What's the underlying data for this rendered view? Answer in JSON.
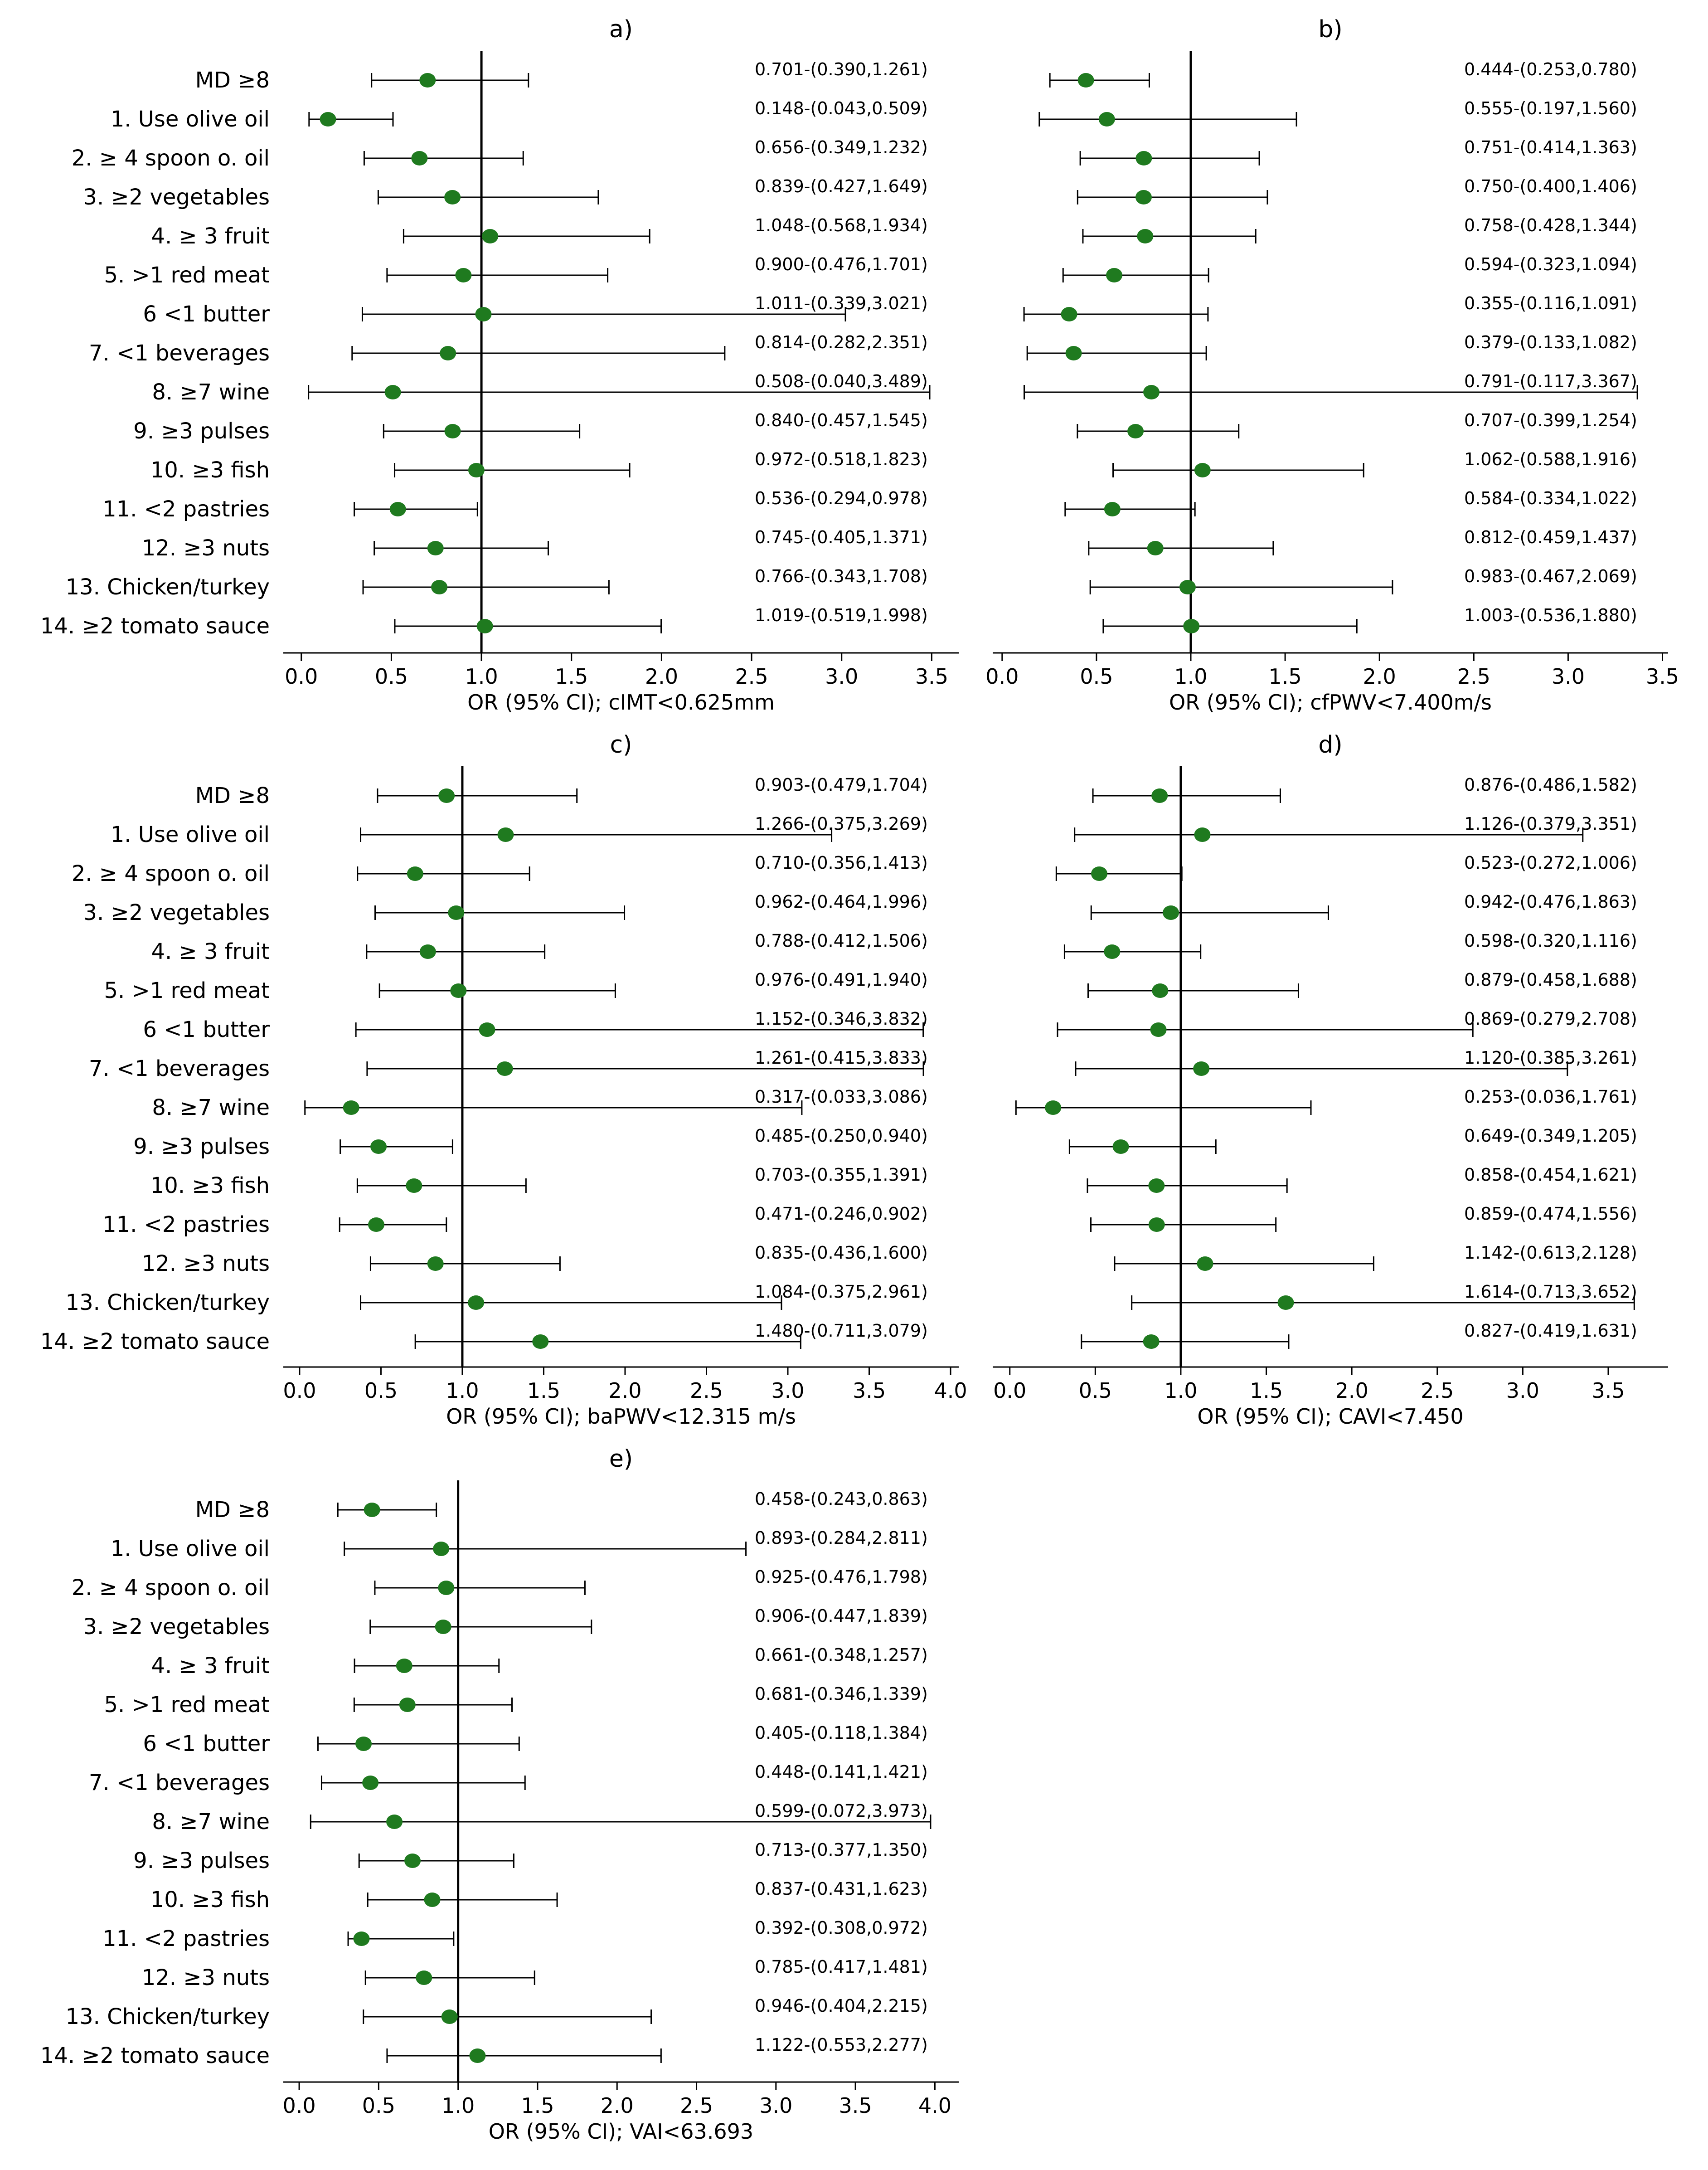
{
  "colors": {
    "point": "#1f7a1f",
    "line": "#000000",
    "background": "#ffffff"
  },
  "chart_data": [
    {
      "type": "forest",
      "title": "a)",
      "xlabel": "OR (95% CI); cIMT<0.625mm",
      "xlim": [
        -0.1,
        3.65
      ],
      "xticks": [
        "0.0",
        "0.5",
        "1.0",
        "1.5",
        "2.0",
        "2.5",
        "3.0",
        "3.5"
      ],
      "reference_line": 1.0,
      "rows": [
        {
          "label": "MD ≥8",
          "or": 0.701,
          "low": 0.39,
          "high": 1.261,
          "text": "0.701-(0.390,1.261)"
        },
        {
          "label": "1. Use olive oil",
          "or": 0.148,
          "low": 0.043,
          "high": 0.509,
          "text": "0.148-(0.043,0.509)"
        },
        {
          "label": "2. ≥ 4 spoon o. oil",
          "or": 0.656,
          "low": 0.349,
          "high": 1.232,
          "text": "0.656-(0.349,1.232)"
        },
        {
          "label": "3. ≥2 vegetables",
          "or": 0.839,
          "low": 0.427,
          "high": 1.649,
          "text": "0.839-(0.427,1.649)"
        },
        {
          "label": "4. ≥ 3 fruit",
          "or": 1.048,
          "low": 0.568,
          "high": 1.934,
          "text": "1.048-(0.568,1.934)"
        },
        {
          "label": "5. >1 red meat",
          "or": 0.9,
          "low": 0.476,
          "high": 1.701,
          "text": "0.900-(0.476,1.701)"
        },
        {
          "label": "6 <1 butter",
          "or": 1.011,
          "low": 0.339,
          "high": 3.021,
          "text": "1.011-(0.339,3.021)"
        },
        {
          "label": "7. <1 beverages",
          "or": 0.814,
          "low": 0.282,
          "high": 2.351,
          "text": "0.814-(0.282,2.351)"
        },
        {
          "label": "8. ≥7 wine",
          "or": 0.508,
          "low": 0.04,
          "high": 3.489,
          "text": "0.508-(0.040,3.489)"
        },
        {
          "label": "9. ≥3 pulses",
          "or": 0.84,
          "low": 0.457,
          "high": 1.545,
          "text": "0.840-(0.457,1.545)"
        },
        {
          "label": "10. ≥3 fish",
          "or": 0.972,
          "low": 0.518,
          "high": 1.823,
          "text": "0.972-(0.518,1.823)"
        },
        {
          "label": "11. <2 pastries",
          "or": 0.536,
          "low": 0.294,
          "high": 0.978,
          "text": "0.536-(0.294,0.978)"
        },
        {
          "label": "12. ≥3 nuts",
          "or": 0.745,
          "low": 0.405,
          "high": 1.371,
          "text": "0.745-(0.405,1.371)"
        },
        {
          "label": "13. Chicken/turkey",
          "or": 0.766,
          "low": 0.343,
          "high": 1.708,
          "text": "0.766-(0.343,1.708)"
        },
        {
          "label": "14. ≥2 tomato sauce",
          "or": 1.019,
          "low": 0.519,
          "high": 1.998,
          "text": "1.019-(0.519,1.998)"
        }
      ]
    },
    {
      "type": "forest",
      "title": "b)",
      "xlabel": "OR (95% CI); cfPWV<7.400m/s",
      "xlim": [
        -0.05,
        3.53
      ],
      "xticks": [
        "0.0",
        "0.5",
        "1.0",
        "1.5",
        "2.0",
        "2.5",
        "3.0",
        "3.5"
      ],
      "reference_line": 1.0,
      "rows": [
        {
          "label": "",
          "or": 0.444,
          "low": 0.253,
          "high": 0.78,
          "text": "0.444-(0.253,0.780)"
        },
        {
          "label": "",
          "or": 0.555,
          "low": 0.197,
          "high": 1.56,
          "text": "0.555-(0.197,1.560)"
        },
        {
          "label": "",
          "or": 0.751,
          "low": 0.414,
          "high": 1.363,
          "text": "0.751-(0.414,1.363)"
        },
        {
          "label": "",
          "or": 0.75,
          "low": 0.4,
          "high": 1.406,
          "text": "0.750-(0.400,1.406)"
        },
        {
          "label": "",
          "or": 0.758,
          "low": 0.428,
          "high": 1.344,
          "text": "0.758-(0.428,1.344)"
        },
        {
          "label": "",
          "or": 0.594,
          "low": 0.323,
          "high": 1.094,
          "text": "0.594-(0.323,1.094)"
        },
        {
          "label": "",
          "or": 0.355,
          "low": 0.116,
          "high": 1.091,
          "text": "0.355-(0.116,1.091)"
        },
        {
          "label": "",
          "or": 0.379,
          "low": 0.133,
          "high": 1.082,
          "text": "0.379-(0.133,1.082)"
        },
        {
          "label": "",
          "or": 0.791,
          "low": 0.117,
          "high": 3.367,
          "text": "0.791-(0.117,3.367)"
        },
        {
          "label": "",
          "or": 0.707,
          "low": 0.399,
          "high": 1.254,
          "text": "0.707-(0.399,1.254)"
        },
        {
          "label": "",
          "or": 1.062,
          "low": 0.588,
          "high": 1.916,
          "text": "1.062-(0.588,1.916)"
        },
        {
          "label": "",
          "or": 0.584,
          "low": 0.334,
          "high": 1.022,
          "text": "0.584-(0.334,1.022)"
        },
        {
          "label": "",
          "or": 0.812,
          "low": 0.459,
          "high": 1.437,
          "text": "0.812-(0.459,1.437)"
        },
        {
          "label": "",
          "or": 0.983,
          "low": 0.467,
          "high": 2.069,
          "text": "0.983-(0.467,2.069)"
        },
        {
          "label": "",
          "or": 1.003,
          "low": 0.536,
          "high": 1.88,
          "text": "1.003-(0.536,1.880)"
        }
      ]
    },
    {
      "type": "forest",
      "title": "c)",
      "xlabel": "OR (95% CI); baPWV<12.315 m/s",
      "xlim": [
        -0.1,
        4.05
      ],
      "xticks": [
        "0.0",
        "0.5",
        "1.0",
        "1.5",
        "2.0",
        "2.5",
        "3.0",
        "3.5",
        "4.0"
      ],
      "reference_line": 1.0,
      "rows": [
        {
          "label": "MD ≥8",
          "or": 0.903,
          "low": 0.479,
          "high": 1.704,
          "text": "0.903-(0.479,1.704)"
        },
        {
          "label": "1. Use olive oil",
          "or": 1.266,
          "low": 0.375,
          "high": 3.269,
          "text": "1.266-(0.375,3.269)"
        },
        {
          "label": "2. ≥ 4 spoon o. oil",
          "or": 0.71,
          "low": 0.356,
          "high": 1.413,
          "text": "0.710-(0.356,1.413)"
        },
        {
          "label": "3. ≥2 vegetables",
          "or": 0.962,
          "low": 0.464,
          "high": 1.996,
          "text": "0.962-(0.464,1.996)"
        },
        {
          "label": "4. ≥ 3 fruit",
          "or": 0.788,
          "low": 0.412,
          "high": 1.506,
          "text": "0.788-(0.412,1.506)"
        },
        {
          "label": "5. >1 red meat",
          "or": 0.976,
          "low": 0.491,
          "high": 1.94,
          "text": "0.976-(0.491,1.940)"
        },
        {
          "label": "6 <1 butter",
          "or": 1.152,
          "low": 0.346,
          "high": 3.832,
          "text": "1.152-(0.346,3.832)"
        },
        {
          "label": "7. <1 beverages",
          "or": 1.261,
          "low": 0.415,
          "high": 3.833,
          "text": "1.261-(0.415,3.833)"
        },
        {
          "label": "8. ≥7 wine",
          "or": 0.317,
          "low": 0.033,
          "high": 3.086,
          "text": "0.317-(0.033,3.086)"
        },
        {
          "label": "9. ≥3 pulses",
          "or": 0.485,
          "low": 0.25,
          "high": 0.94,
          "text": "0.485-(0.250,0.940)"
        },
        {
          "label": "10. ≥3 fish",
          "or": 0.703,
          "low": 0.355,
          "high": 1.391,
          "text": "0.703-(0.355,1.391)"
        },
        {
          "label": "11. <2 pastries",
          "or": 0.471,
          "low": 0.246,
          "high": 0.902,
          "text": "0.471-(0.246,0.902)"
        },
        {
          "label": "12. ≥3 nuts",
          "or": 0.835,
          "low": 0.436,
          "high": 1.6,
          "text": "0.835-(0.436,1.600)"
        },
        {
          "label": "13. Chicken/turkey",
          "or": 1.084,
          "low": 0.375,
          "high": 2.961,
          "text": "1.084-(0.375,2.961)"
        },
        {
          "label": "14. ≥2 tomato sauce",
          "or": 1.48,
          "low": 0.711,
          "high": 3.079,
          "text": "1.480-(0.711,3.079)"
        }
      ]
    },
    {
      "type": "forest",
      "title": "d)",
      "xlabel": "OR (95% CI); CAVI<7.450",
      "xlim": [
        -0.1,
        3.85
      ],
      "xticks": [
        "0.0",
        "0.5",
        "1.0",
        "1.5",
        "2.0",
        "2.5",
        "3.0",
        "3.5"
      ],
      "reference_line": 1.0,
      "rows": [
        {
          "label": "",
          "or": 0.876,
          "low": 0.486,
          "high": 1.582,
          "text": "0.876-(0.486,1.582)"
        },
        {
          "label": "",
          "or": 1.126,
          "low": 0.379,
          "high": 3.351,
          "text": "1.126-(0.379,3.351)"
        },
        {
          "label": "",
          "or": 0.523,
          "low": 0.272,
          "high": 1.006,
          "text": "0.523-(0.272,1.006)"
        },
        {
          "label": "",
          "or": 0.942,
          "low": 0.476,
          "high": 1.863,
          "text": "0.942-(0.476,1.863)"
        },
        {
          "label": "",
          "or": 0.598,
          "low": 0.32,
          "high": 1.116,
          "text": "0.598-(0.320,1.116)"
        },
        {
          "label": "",
          "or": 0.879,
          "low": 0.458,
          "high": 1.688,
          "text": "0.879-(0.458,1.688)"
        },
        {
          "label": "",
          "or": 0.869,
          "low": 0.279,
          "high": 2.708,
          "text": "0.869-(0.279,2.708)"
        },
        {
          "label": "",
          "or": 1.12,
          "low": 0.385,
          "high": 3.261,
          "text": "1.120-(0.385,3.261)"
        },
        {
          "label": "",
          "or": 0.253,
          "low": 0.036,
          "high": 1.761,
          "text": "0.253-(0.036,1.761)"
        },
        {
          "label": "",
          "or": 0.649,
          "low": 0.349,
          "high": 1.205,
          "text": "0.649-(0.349,1.205)"
        },
        {
          "label": "",
          "or": 0.858,
          "low": 0.454,
          "high": 1.621,
          "text": "0.858-(0.454,1.621)"
        },
        {
          "label": "",
          "or": 0.859,
          "low": 0.474,
          "high": 1.556,
          "text": "0.859-(0.474,1.556)"
        },
        {
          "label": "",
          "or": 1.142,
          "low": 0.613,
          "high": 2.128,
          "text": "1.142-(0.613,2.128)"
        },
        {
          "label": "",
          "or": 1.614,
          "low": 0.713,
          "high": 3.652,
          "text": "1.614-(0.713,3.652)"
        },
        {
          "label": "",
          "or": 0.827,
          "low": 0.419,
          "high": 1.631,
          "text": "0.827-(0.419,1.631)"
        }
      ]
    },
    {
      "type": "forest",
      "title": "e)",
      "xlabel": "OR (95% CI); VAI<63.693",
      "xlim": [
        -0.1,
        4.15
      ],
      "xticks": [
        "0.0",
        "0.5",
        "1.0",
        "1.5",
        "2.0",
        "2.5",
        "3.0",
        "3.5",
        "4.0"
      ],
      "reference_line": 1.0,
      "rows": [
        {
          "label": "MD ≥8",
          "or": 0.458,
          "low": 0.243,
          "high": 0.863,
          "text": "0.458-(0.243,0.863)"
        },
        {
          "label": "1. Use olive oil",
          "or": 0.893,
          "low": 0.284,
          "high": 2.811,
          "text": "0.893-(0.284,2.811)"
        },
        {
          "label": "2. ≥ 4 spoon o. oil",
          "or": 0.925,
          "low": 0.476,
          "high": 1.798,
          "text": "0.925-(0.476,1.798)"
        },
        {
          "label": "3. ≥2 vegetables",
          "or": 0.906,
          "low": 0.447,
          "high": 1.839,
          "text": "0.906-(0.447,1.839)"
        },
        {
          "label": "4. ≥ 3 fruit",
          "or": 0.661,
          "low": 0.348,
          "high": 1.257,
          "text": "0.661-(0.348,1.257)"
        },
        {
          "label": "5. >1 red meat",
          "or": 0.681,
          "low": 0.346,
          "high": 1.339,
          "text": "0.681-(0.346,1.339)"
        },
        {
          "label": "6 <1 butter",
          "or": 0.405,
          "low": 0.118,
          "high": 1.384,
          "text": "0.405-(0.118,1.384)"
        },
        {
          "label": "7. <1 beverages",
          "or": 0.448,
          "low": 0.141,
          "high": 1.421,
          "text": "0.448-(0.141,1.421)"
        },
        {
          "label": "8. ≥7 wine",
          "or": 0.599,
          "low": 0.072,
          "high": 3.973,
          "text": "0.599-(0.072,3.973)"
        },
        {
          "label": "9. ≥3 pulses",
          "or": 0.713,
          "low": 0.377,
          "high": 1.35,
          "text": "0.713-(0.377,1.350)"
        },
        {
          "label": "10. ≥3 fish",
          "or": 0.837,
          "low": 0.431,
          "high": 1.623,
          "text": "0.837-(0.431,1.623)"
        },
        {
          "label": "11. <2 pastries",
          "or": 0.392,
          "low": 0.308,
          "high": 0.972,
          "text": "0.392-(0.308,0.972)"
        },
        {
          "label": "12. ≥3 nuts",
          "or": 0.785,
          "low": 0.417,
          "high": 1.481,
          "text": "0.785-(0.417,1.481)"
        },
        {
          "label": "13. Chicken/turkey",
          "or": 0.946,
          "low": 0.404,
          "high": 2.215,
          "text": "0.946-(0.404,2.215)"
        },
        {
          "label": "14. ≥2 tomato sauce",
          "or": 1.122,
          "low": 0.553,
          "high": 2.277,
          "text": "1.122-(0.553,2.277)"
        }
      ]
    }
  ]
}
